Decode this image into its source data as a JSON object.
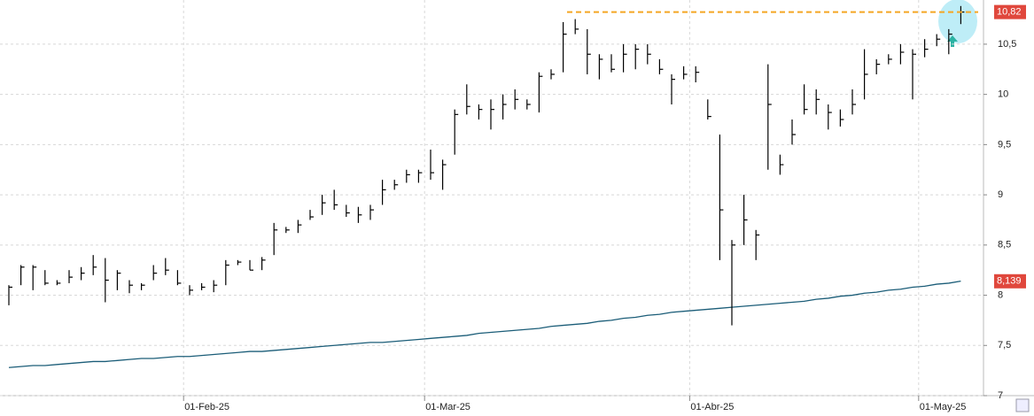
{
  "chart_data": {
    "type": "ohlc",
    "categories": [
      null,
      null,
      null,
      null,
      null,
      null,
      null,
      null,
      null,
      null,
      null,
      null,
      null,
      null,
      null,
      "01-Feb-25",
      null,
      null,
      null,
      null,
      null,
      null,
      null,
      null,
      null,
      null,
      null,
      null,
      null,
      null,
      null,
      null,
      null,
      null,
      null,
      "01-Mar-25",
      null,
      null,
      null,
      null,
      null,
      null,
      null,
      null,
      null,
      null,
      null,
      null,
      null,
      null,
      null,
      null,
      null,
      null,
      null,
      null,
      null,
      "01-Abr-25",
      null,
      null,
      null,
      null,
      null,
      null,
      null,
      null,
      null,
      null,
      null,
      null,
      null,
      null,
      null,
      null,
      null,
      null,
      "01-May-25",
      null,
      null,
      null
    ],
    "high": [
      8.1,
      8.3,
      8.3,
      8.25,
      8.15,
      8.25,
      8.28,
      8.4,
      8.37,
      8.25,
      8.15,
      8.12,
      8.3,
      8.37,
      8.25,
      8.1,
      8.12,
      8.15,
      8.35,
      8.35,
      8.35,
      8.38,
      8.72,
      8.68,
      8.75,
      8.85,
      9.0,
      9.05,
      8.9,
      8.88,
      8.9,
      9.15,
      9.15,
      9.25,
      9.25,
      9.45,
      9.35,
      9.85,
      10.1,
      9.9,
      9.95,
      10.0,
      10.05,
      9.95,
      10.22,
      10.25,
      10.72,
      10.75,
      10.65,
      10.4,
      10.4,
      10.5,
      10.5,
      10.5,
      10.35,
      10.2,
      10.28,
      10.28,
      9.95,
      9.6,
      8.55,
      9.0,
      8.65,
      10.3,
      9.4,
      9.75,
      10.1,
      10.05,
      9.9,
      9.85,
      10.05,
      10.45,
      10.35,
      10.4,
      10.5,
      10.45,
      10.55,
      10.6,
      10.65,
      10.88
    ],
    "low": [
      7.9,
      8.1,
      8.05,
      8.1,
      8.1,
      8.12,
      8.15,
      8.2,
      7.93,
      8.05,
      8.02,
      8.05,
      8.15,
      8.2,
      8.1,
      8.0,
      8.05,
      8.03,
      8.1,
      8.3,
      8.25,
      8.25,
      8.4,
      8.62,
      8.62,
      8.75,
      8.8,
      8.85,
      8.78,
      8.72,
      8.75,
      8.9,
      9.05,
      9.12,
      9.12,
      9.15,
      9.05,
      9.4,
      9.8,
      9.75,
      9.65,
      9.75,
      9.85,
      9.85,
      9.82,
      10.15,
      10.22,
      10.6,
      10.2,
      10.15,
      10.22,
      10.22,
      10.25,
      10.3,
      10.2,
      9.9,
      10.15,
      10.12,
      9.75,
      8.35,
      7.7,
      8.5,
      8.35,
      9.25,
      9.2,
      9.5,
      9.8,
      9.8,
      9.65,
      9.68,
      9.8,
      9.95,
      10.2,
      10.3,
      10.3,
      9.95,
      10.37,
      10.48,
      10.4,
      10.7
    ],
    "close": [
      8.08,
      8.28,
      8.28,
      8.12,
      8.12,
      8.18,
      8.22,
      8.28,
      8.15,
      8.22,
      8.1,
      8.1,
      8.22,
      8.25,
      8.12,
      8.05,
      8.08,
      8.1,
      8.3,
      8.33,
      8.25,
      8.35,
      8.65,
      8.65,
      8.7,
      8.78,
      8.92,
      8.9,
      8.82,
      8.8,
      8.85,
      9.05,
      9.1,
      9.2,
      9.22,
      9.22,
      9.3,
      9.8,
      9.88,
      9.85,
      9.85,
      9.9,
      9.95,
      9.9,
      10.18,
      10.2,
      10.6,
      10.65,
      10.4,
      10.35,
      10.25,
      10.4,
      10.45,
      10.4,
      10.25,
      10.15,
      10.2,
      10.22,
      9.78,
      8.85,
      8.5,
      8.75,
      8.6,
      9.9,
      9.3,
      9.6,
      9.85,
      9.95,
      9.82,
      9.75,
      9.9,
      10.2,
      10.3,
      10.35,
      10.42,
      10.4,
      10.45,
      10.55,
      10.6,
      10.82
    ],
    "ma": [
      7.28,
      7.29,
      7.3,
      7.3,
      7.31,
      7.32,
      7.33,
      7.34,
      7.34,
      7.35,
      7.36,
      7.37,
      7.37,
      7.38,
      7.39,
      7.39,
      7.4,
      7.41,
      7.42,
      7.43,
      7.44,
      7.44,
      7.45,
      7.46,
      7.47,
      7.48,
      7.49,
      7.5,
      7.51,
      7.52,
      7.53,
      7.53,
      7.54,
      7.55,
      7.56,
      7.57,
      7.58,
      7.59,
      7.6,
      7.62,
      7.63,
      7.64,
      7.65,
      7.66,
      7.67,
      7.69,
      7.7,
      7.71,
      7.72,
      7.74,
      7.75,
      7.77,
      7.78,
      7.8,
      7.81,
      7.83,
      7.84,
      7.85,
      7.86,
      7.87,
      7.88,
      7.89,
      7.9,
      7.91,
      7.92,
      7.93,
      7.94,
      7.96,
      7.97,
      7.99,
      8.0,
      8.02,
      8.03,
      8.05,
      8.06,
      8.08,
      8.09,
      8.11,
      8.12,
      8.14
    ],
    "color": "#000000",
    "ma_color": "#1b5d78",
    "ylim": [
      7,
      10.94
    ],
    "yticks": [
      7,
      {
        "value": 7.5,
        "label": "7,5"
      },
      8,
      {
        "value": 8.5,
        "label": "8,5"
      },
      9,
      {
        "value": 9.5,
        "label": "9,5"
      },
      10,
      {
        "value": 10.5,
        "label": "10,5"
      }
    ],
    "price_labels": [
      {
        "value": 10.82,
        "label": "10,82"
      },
      {
        "value": 8.139,
        "label": "8,139"
      }
    ],
    "grid": true
  }
}
